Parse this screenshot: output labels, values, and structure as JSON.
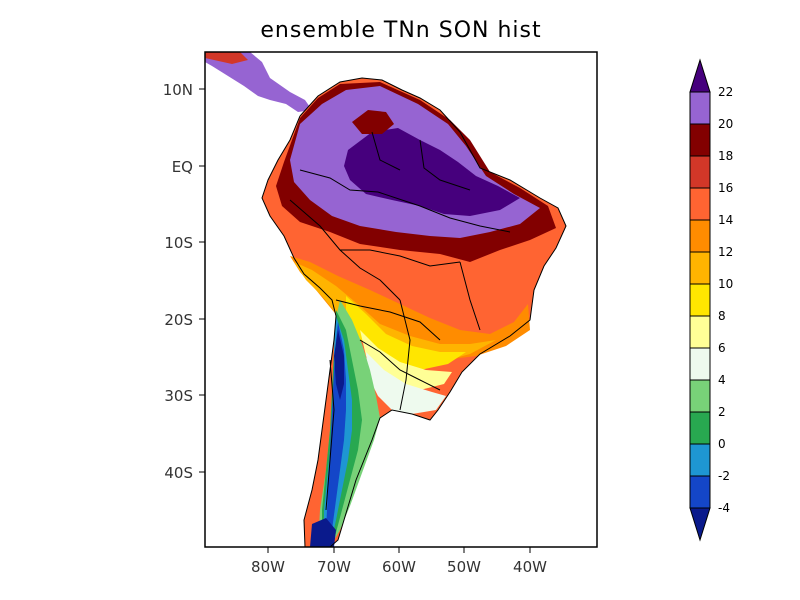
{
  "map": {
    "title": "ensemble TNn SON hist",
    "lat_labels": [
      "10N",
      "EQ",
      "10S",
      "20S",
      "30S",
      "40S"
    ],
    "lon_labels": [
      "80W",
      "70W",
      "60W",
      "50W",
      "40W"
    ]
  },
  "colorbar": {
    "levels": [
      "-4",
      "-2",
      "0",
      "2",
      "4",
      "6",
      "8",
      "10",
      "12",
      "14",
      "16",
      "18",
      "20",
      "22"
    ],
    "colors": [
      "#0a1a8c",
      "#1446c8",
      "#1e96d2",
      "#28a850",
      "#78d278",
      "#eefaee",
      "#ffff96",
      "#ffe600",
      "#ffb400",
      "#ff8c00",
      "#ff6432",
      "#d23728",
      "#820000",
      "#9664d2",
      "#46007d"
    ],
    "ocean_color": "#ffffff"
  }
}
